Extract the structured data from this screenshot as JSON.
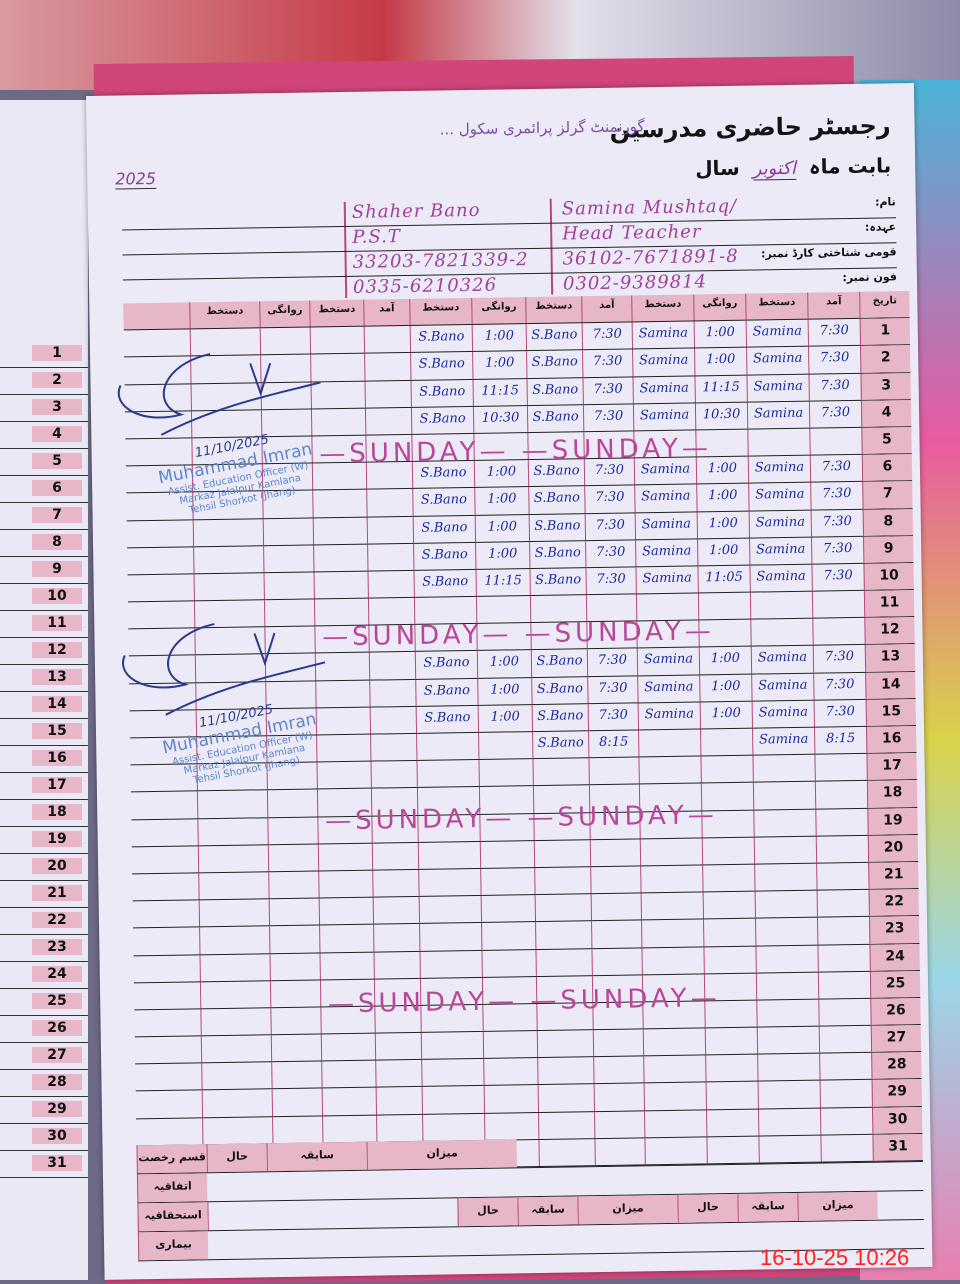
{
  "register": {
    "title": "رجسٹر حاضری مدرسین",
    "school": "گورنمنٹ گرلز پرائمری سکول ...",
    "month_label": "بابت ماہ",
    "month_value": "اکتوبر",
    "year_label": "سال",
    "year_value": "2025"
  },
  "info_labels": [
    "نام:",
    "عہدہ:",
    "قومی شناختی کارڈ نمبر:",
    "فون نمبر:"
  ],
  "teachers": [
    {
      "name": "Samina Mushtaq/",
      "designation": "Head Teacher",
      "cnic": "36102-7671891-8",
      "phone": "0302-9389814"
    },
    {
      "name": "Shaher Bano",
      "designation": "P.S.T",
      "cnic": "33203-7821339-2",
      "phone": "0335-6210326"
    }
  ],
  "table_headers": [
    "تاریخ",
    "آمد",
    "دستخط",
    "روانگی",
    "دستخط",
    "آمد",
    "دستخط",
    "روانگی",
    "دستخط",
    "آمد",
    "دستخط",
    "روانگی",
    "دستخط"
  ],
  "rows": [
    {
      "day": "1",
      "t1": [
        "7:30",
        "Samina",
        "1:00",
        "Samina"
      ],
      "t2": [
        "7:30",
        "S.Bano",
        "1:00",
        "S.Bano"
      ]
    },
    {
      "day": "2",
      "t1": [
        "7:30",
        "Samina",
        "1:00",
        "Samina"
      ],
      "t2": [
        "7:30",
        "S.Bano",
        "1:00",
        "S.Bano"
      ]
    },
    {
      "day": "3",
      "t1": [
        "7:30",
        "Samina",
        "11:15",
        "Samina"
      ],
      "t2": [
        "7:30",
        "S.Bano",
        "11:15",
        "S.Bano"
      ]
    },
    {
      "day": "4",
      "t1": [
        "7:30",
        "Samina",
        "10:30",
        "Samina"
      ],
      "t2": [
        "7:30",
        "S.Bano",
        "10:30",
        "S.Bano"
      ]
    },
    {
      "day": "5"
    },
    {
      "day": "6",
      "t1": [
        "7:30",
        "Samina",
        "1:00",
        "Samina"
      ],
      "t2": [
        "7:30",
        "S.Bano",
        "1:00",
        "S.Bano"
      ]
    },
    {
      "day": "7",
      "t1": [
        "7:30",
        "Samina",
        "1:00",
        "Samina"
      ],
      "t2": [
        "7:30",
        "S.Bano",
        "1:00",
        "S.Bano"
      ]
    },
    {
      "day": "8",
      "t1": [
        "7:30",
        "Samina",
        "1:00",
        "Samina"
      ],
      "t2": [
        "7:30",
        "S.Bano",
        "1:00",
        "S.Bano"
      ]
    },
    {
      "day": "9",
      "t1": [
        "7:30",
        "Samina",
        "1:00",
        "Samina"
      ],
      "t2": [
        "7:30",
        "S.Bano",
        "1:00",
        "S.Bano"
      ]
    },
    {
      "day": "10",
      "t1": [
        "7:30",
        "Samina",
        "11:05",
        "Samina"
      ],
      "t2": [
        "7:30",
        "S.Bano",
        "11:15",
        "S.Bano"
      ]
    },
    {
      "day": "11"
    },
    {
      "day": "12"
    },
    {
      "day": "13",
      "t1": [
        "7:30",
        "Samina",
        "1:00",
        "Samina"
      ],
      "t2": [
        "7:30",
        "S.Bano",
        "1:00",
        "S.Bano"
      ]
    },
    {
      "day": "14",
      "t1": [
        "7:30",
        "Samina",
        "1:00",
        "Samina"
      ],
      "t2": [
        "7:30",
        "S.Bano",
        "1:00",
        "S.Bano"
      ]
    },
    {
      "day": "15",
      "t1": [
        "7:30",
        "Samina",
        "1:00",
        "Samina"
      ],
      "t2": [
        "7:30",
        "S.Bano",
        "1:00",
        "S.Bano"
      ]
    },
    {
      "day": "16",
      "t1": [
        "8:15",
        "Samina",
        "",
        ""
      ],
      "t2": [
        "8:15",
        "S.Bano",
        "",
        ""
      ]
    },
    {
      "day": "17"
    },
    {
      "day": "18"
    },
    {
      "day": "19"
    },
    {
      "day": "20"
    },
    {
      "day": "21"
    },
    {
      "day": "22"
    },
    {
      "day": "23"
    },
    {
      "day": "24"
    },
    {
      "day": "25"
    },
    {
      "day": "26"
    },
    {
      "day": "27"
    },
    {
      "day": "28"
    },
    {
      "day": "29"
    },
    {
      "day": "30"
    },
    {
      "day": "31"
    }
  ],
  "sunday_marks": [
    {
      "text": "—SUNDAY— —SUNDAY—",
      "day": 5
    },
    {
      "text": "—SUNDAY— —SUNDAY—",
      "day": 12
    },
    {
      "text": "—SUNDAY— —SUNDAY—",
      "day": 19
    },
    {
      "text": "—SUNDAY— —SUNDAY—",
      "day": 26
    }
  ],
  "stamps": [
    {
      "name": "Muhammad Imran",
      "line1": "Assist. Education Officer (W)",
      "line2": "Markaz Jalalpur Kamlana",
      "line3": "Tehsil Shorkot (Jhang)",
      "date": "11/10/2025"
    },
    {
      "name": "Muhammad Imran",
      "line1": "Assist. Education Officer (W)",
      "line2": "Markaz Jalalpur Kamlana",
      "line3": "Tehsil Shorkot (Jhang)",
      "date": "11/10/2025"
    }
  ],
  "footer": {
    "row1": [
      "قسم رخصت",
      "حال",
      "سابقہ",
      "میزان"
    ],
    "row_labels": [
      "اتفاقیہ",
      "استحقاقیہ",
      "بیماری"
    ],
    "row2": [
      "حال",
      "سابقہ",
      "میزان",
      "حال",
      "سابقہ",
      "میزان"
    ]
  },
  "left_page": {
    "days": [
      "1",
      "2",
      "3",
      "4",
      "5",
      "6",
      "7",
      "8",
      "9",
      "10",
      "11",
      "12",
      "13",
      "14",
      "15",
      "16",
      "17",
      "18",
      "19",
      "20",
      "21",
      "22",
      "23",
      "24",
      "25",
      "26",
      "27",
      "28",
      "29",
      "30",
      "31"
    ]
  },
  "timestamp": "16-10-25  10:26",
  "colors": {
    "ink_blue": "#1a2a9c",
    "ink_pink": "#b8479a",
    "header_pink": "#e7b7c8",
    "stamp_blue": "#5d86c8",
    "timestamp_red": "#ff2020"
  }
}
